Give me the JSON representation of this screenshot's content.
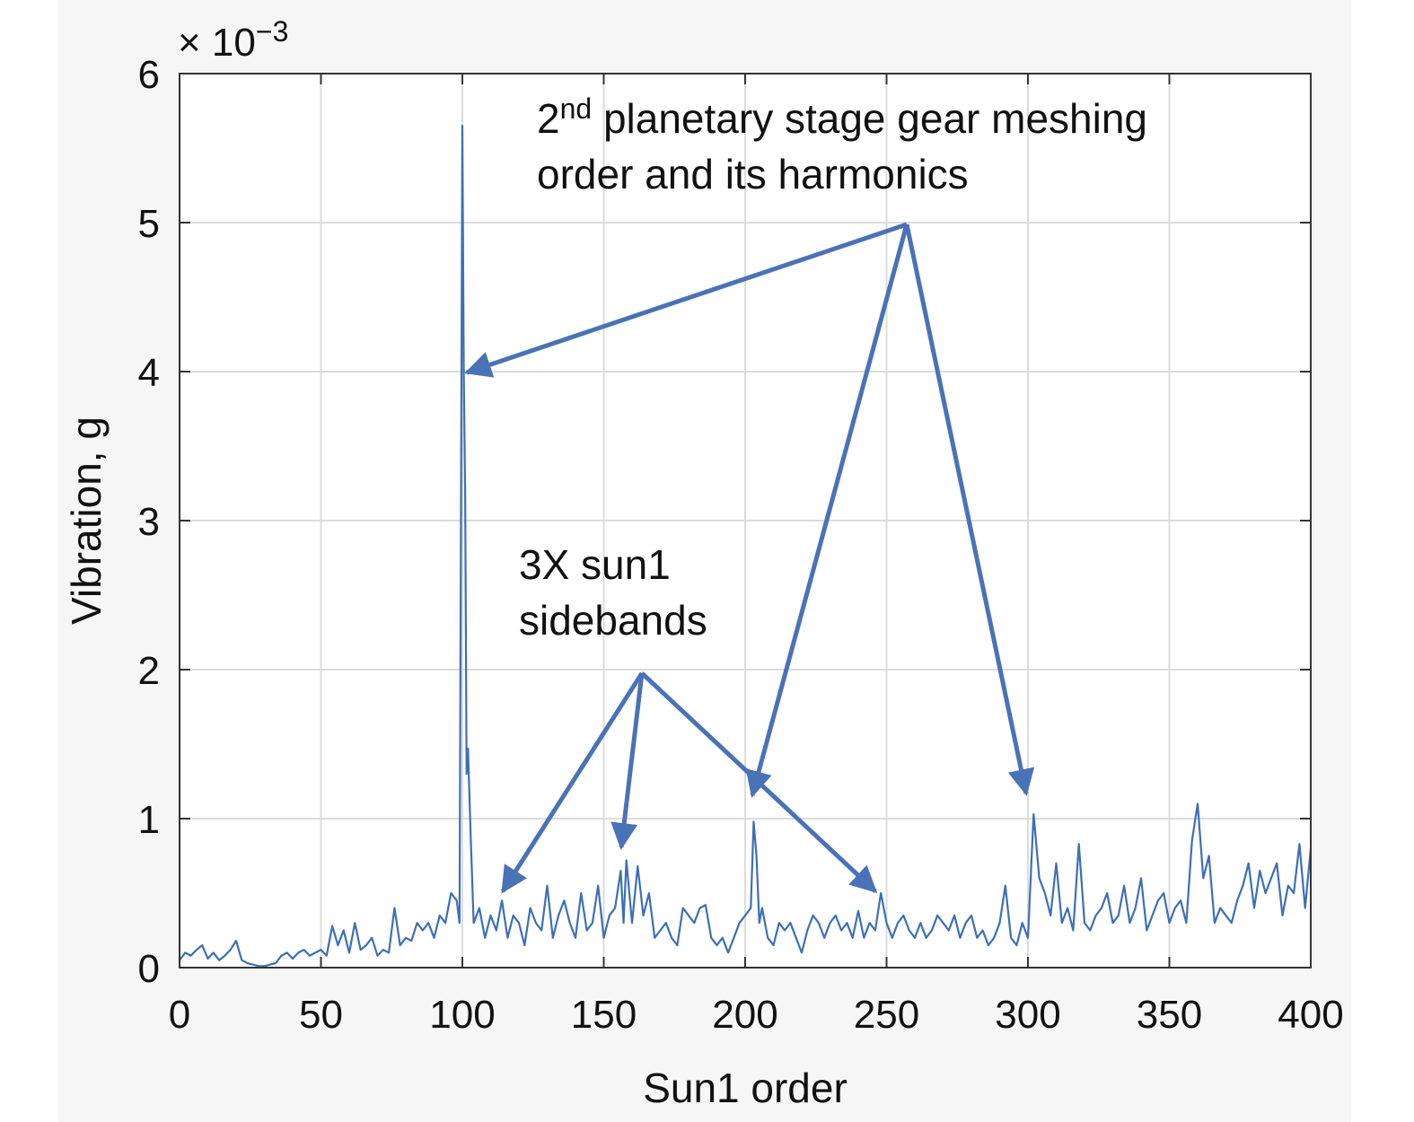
{
  "chart_data": {
    "type": "line",
    "x_label": "Sun1 order",
    "y_label": "Vibration, g",
    "y_multiplier": {
      "base": "× 10",
      "exponent": "−3"
    },
    "annotations": [
      {
        "first_line": [
          "2",
          "nd",
          " planetary stage gear meshing"
        ],
        "lines": [
          "order and its harmonics"
        ]
      },
      {
        "first_line": [
          "3X sun1"
        ],
        "lines": [
          "sidebands"
        ]
      }
    ],
    "xlim": [
      0,
      400
    ],
    "xticks": [
      0,
      50,
      100,
      150,
      200,
      250,
      300,
      350,
      400
    ],
    "ylim": [
      0,
      6
    ],
    "yticks": [
      0,
      1,
      2,
      3,
      4,
      5,
      6
    ],
    "grid": true,
    "series": [
      {
        "color": "#3d6fb6",
        "x": [
          0,
          2,
          4,
          6,
          8,
          10,
          12,
          14,
          16,
          18,
          20,
          22,
          24,
          26,
          28,
          30,
          32,
          34,
          36,
          38,
          40,
          42,
          44,
          46,
          48,
          50,
          52,
          54,
          56,
          58,
          60,
          62,
          64,
          66,
          68,
          70,
          72,
          74,
          76,
          78,
          80,
          82,
          84,
          86,
          88,
          90,
          92,
          94,
          96,
          98,
          99,
          100,
          100.5,
          101,
          101.5,
          102,
          103,
          104,
          106,
          108,
          110,
          112,
          114,
          116,
          118,
          120,
          122,
          124,
          126,
          128,
          130,
          132,
          134,
          136,
          138,
          140,
          142,
          144,
          146,
          148,
          150,
          152,
          154,
          156,
          157,
          158,
          160,
          162,
          164,
          166,
          168,
          170,
          172,
          174,
          176,
          178,
          180,
          182,
          184,
          186,
          188,
          190,
          192,
          194,
          196,
          198,
          200,
          202,
          203,
          204,
          205,
          206,
          208,
          210,
          212,
          214,
          216,
          218,
          220,
          222,
          224,
          226,
          228,
          230,
          232,
          234,
          236,
          238,
          240,
          242,
          244,
          246,
          248,
          250,
          252,
          254,
          256,
          258,
          260,
          262,
          264,
          266,
          268,
          270,
          272,
          274,
          276,
          278,
          280,
          282,
          284,
          286,
          288,
          290,
          292,
          294,
          296,
          298,
          300,
          302,
          304,
          306,
          308,
          310,
          312,
          314,
          316,
          318,
          320,
          322,
          324,
          326,
          328,
          330,
          332,
          334,
          336,
          338,
          340,
          342,
          344,
          346,
          348,
          350,
          352,
          354,
          356,
          358,
          360,
          362,
          364,
          366,
          368,
          370,
          372,
          374,
          376,
          378,
          380,
          382,
          384,
          386,
          388,
          390,
          392,
          394,
          396,
          398,
          400
        ],
        "values": [
          0.05,
          0.1,
          0.08,
          0.12,
          0.15,
          0.06,
          0.1,
          0.05,
          0.08,
          0.12,
          0.18,
          0.05,
          0.03,
          0.02,
          0.01,
          0.01,
          0.02,
          0.03,
          0.08,
          0.1,
          0.06,
          0.1,
          0.12,
          0.08,
          0.1,
          0.12,
          0.08,
          0.28,
          0.15,
          0.25,
          0.1,
          0.3,
          0.12,
          0.15,
          0.2,
          0.08,
          0.12,
          0.1,
          0.4,
          0.15,
          0.2,
          0.18,
          0.3,
          0.25,
          0.3,
          0.2,
          0.35,
          0.3,
          0.5,
          0.45,
          0.3,
          5.65,
          4.0,
          3.17,
          1.3,
          1.47,
          0.85,
          0.3,
          0.4,
          0.2,
          0.35,
          0.25,
          0.45,
          0.2,
          0.35,
          0.3,
          0.15,
          0.4,
          0.3,
          0.25,
          0.55,
          0.2,
          0.35,
          0.45,
          0.3,
          0.2,
          0.5,
          0.25,
          0.3,
          0.55,
          0.2,
          0.35,
          0.4,
          0.65,
          0.3,
          0.72,
          0.3,
          0.68,
          0.35,
          0.5,
          0.2,
          0.25,
          0.3,
          0.2,
          0.15,
          0.4,
          0.35,
          0.3,
          0.4,
          0.42,
          0.2,
          0.15,
          0.2,
          0.1,
          0.2,
          0.3,
          0.35,
          0.4,
          0.98,
          0.75,
          0.3,
          0.4,
          0.2,
          0.15,
          0.3,
          0.25,
          0.3,
          0.2,
          0.1,
          0.25,
          0.35,
          0.3,
          0.2,
          0.3,
          0.35,
          0.25,
          0.3,
          0.2,
          0.38,
          0.2,
          0.3,
          0.25,
          0.5,
          0.3,
          0.2,
          0.3,
          0.35,
          0.25,
          0.2,
          0.3,
          0.2,
          0.25,
          0.35,
          0.3,
          0.25,
          0.35,
          0.2,
          0.3,
          0.35,
          0.2,
          0.25,
          0.15,
          0.2,
          0.3,
          0.55,
          0.2,
          0.15,
          0.3,
          0.2,
          1.03,
          0.6,
          0.5,
          0.35,
          0.7,
          0.3,
          0.4,
          0.25,
          0.83,
          0.3,
          0.25,
          0.35,
          0.4,
          0.5,
          0.3,
          0.35,
          0.55,
          0.3,
          0.4,
          0.6,
          0.25,
          0.35,
          0.45,
          0.5,
          0.3,
          0.4,
          0.45,
          0.3,
          0.85,
          1.1,
          0.6,
          0.75,
          0.3,
          0.4,
          0.35,
          0.3,
          0.45,
          0.55,
          0.7,
          0.4,
          0.65,
          0.5,
          0.6,
          0.7,
          0.35,
          0.55,
          0.5,
          0.83,
          0.4,
          0.8
        ]
      }
    ]
  }
}
